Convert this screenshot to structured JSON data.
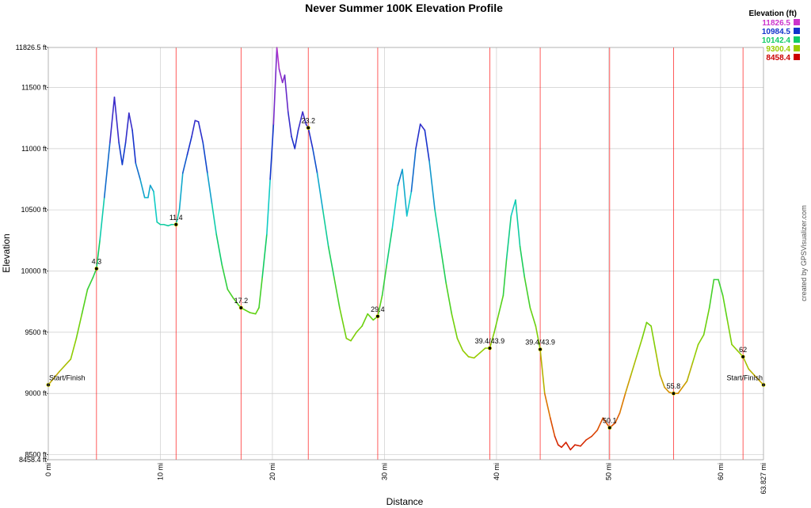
{
  "chart_data": {
    "type": "line",
    "title": "Never Summer 100K Elevation Profile",
    "xlabel": "Distance",
    "ylabel": "Elevation",
    "xlim": [
      0,
      63.827
    ],
    "ylim": [
      8458.4,
      11826.5
    ],
    "x_ticks": [
      "0 mi",
      "10 mi",
      "20 mi",
      "30 mi",
      "40 mi",
      "50 mi",
      "60 mi",
      "63.827 mi"
    ],
    "x_tick_values": [
      0,
      10,
      20,
      30,
      40,
      50,
      60,
      63.827
    ],
    "y_ticks": [
      "8458.4 ft",
      "8500 ft",
      "9000 ft",
      "9500 ft",
      "10000 ft",
      "10500 ft",
      "11000 ft",
      "11500 ft",
      "11826.5 ft"
    ],
    "y_tick_values": [
      8458.4,
      8500,
      9000,
      9500,
      10000,
      10500,
      11000,
      11500,
      11826.5
    ],
    "grid": true,
    "legend": {
      "title": "Elevation (ft)",
      "position": "top-right",
      "entries": [
        {
          "label": "11826.5",
          "color": "#cc33cc"
        },
        {
          "label": "10984.5",
          "color": "#1133cc"
        },
        {
          "label": "10142.4",
          "color": "#11cc66"
        },
        {
          "label": "9300.4",
          "color": "#99cc00"
        },
        {
          "label": "8458.4",
          "color": "#cc0000"
        }
      ]
    },
    "waypoints": [
      {
        "label": "Start/Finish",
        "x": 0,
        "y": 9070
      },
      {
        "label": "4.3",
        "x": 4.3,
        "y": 10020
      },
      {
        "label": "11.4",
        "x": 11.4,
        "y": 10380
      },
      {
        "label": "17.2",
        "x": 17.2,
        "y": 9700
      },
      {
        "label": "23.2",
        "x": 23.2,
        "y": 11170
      },
      {
        "label": "29.4",
        "x": 29.4,
        "y": 9630
      },
      {
        "label": "39.4/43.9",
        "x": 39.4,
        "y": 9370
      },
      {
        "label": "39.4/43.9",
        "x": 43.9,
        "y": 9360
      },
      {
        "label": "50.1",
        "x": 50.1,
        "y": 8720
      },
      {
        "label": "55.8",
        "x": 55.8,
        "y": 9000
      },
      {
        "label": "62",
        "x": 62,
        "y": 9300
      },
      {
        "label": "Start/Finish",
        "x": 63.827,
        "y": 9070
      }
    ],
    "series": [
      {
        "x": [
          0,
          1.0,
          2.0,
          2.5,
          3.0,
          3.5,
          4.0,
          4.3,
          4.6,
          5.0,
          5.5,
          5.9,
          6.3,
          6.6,
          6.9,
          7.2,
          7.5,
          7.8,
          8.2,
          8.6,
          8.9,
          9.1,
          9.4,
          9.7,
          10.0,
          10.3,
          10.7,
          11.0,
          11.4,
          11.7,
          12.0,
          12.4,
          12.8,
          13.1,
          13.4,
          13.8,
          14.2,
          14.6,
          15.0,
          15.5,
          16.0,
          16.5,
          17.0,
          17.2,
          17.6,
          18.0,
          18.5,
          18.8,
          19.1,
          19.5,
          19.8,
          20.1,
          20.4,
          20.6,
          20.9,
          21.1,
          21.4,
          21.7,
          22.0,
          22.3,
          22.7,
          23.0,
          23.2,
          23.6,
          24.0,
          24.5,
          25.0,
          25.5,
          26.0,
          26.6,
          27.0,
          27.5,
          28.0,
          28.5,
          29.0,
          29.4,
          29.8,
          30.2,
          30.7,
          31.2,
          31.6,
          32.0,
          32.4,
          32.8,
          33.2,
          33.6,
          34.0,
          34.5,
          35.0,
          35.5,
          36.0,
          36.5,
          37.0,
          37.5,
          38.0,
          38.5,
          39.0,
          39.4,
          39.8,
          40.2,
          40.6,
          40.9,
          41.3,
          41.7,
          42.1,
          42.5,
          43.0,
          43.5,
          43.9,
          44.3,
          44.8,
          45.2,
          45.5,
          45.8,
          46.2,
          46.6,
          47.0,
          47.5,
          48.0,
          48.5,
          49.0,
          49.5,
          50.1,
          50.6,
          51.0,
          51.5,
          52.0,
          52.5,
          53.0,
          53.4,
          53.8,
          54.2,
          54.6,
          55.0,
          55.4,
          55.8,
          56.2,
          56.6,
          57.0,
          57.5,
          58.0,
          58.5,
          59.0,
          59.4,
          59.8,
          60.2,
          60.6,
          61.0,
          61.5,
          62.0,
          62.5,
          63.0,
          63.827
        ],
        "y": [
          9070,
          9180,
          9280,
          9450,
          9650,
          9850,
          9950,
          10020,
          10250,
          10600,
          11050,
          11420,
          11050,
          10870,
          11050,
          11290,
          11150,
          10880,
          10750,
          10600,
          10600,
          10700,
          10650,
          10400,
          10380,
          10380,
          10370,
          10380,
          10380,
          10500,
          10800,
          10950,
          11100,
          11230,
          11220,
          11050,
          10800,
          10550,
          10300,
          10050,
          9850,
          9780,
          9720,
          9700,
          9680,
          9660,
          9650,
          9700,
          9950,
          10300,
          10750,
          11200,
          11826,
          11650,
          11540,
          11600,
          11300,
          11100,
          11000,
          11150,
          11300,
          11200,
          11170,
          11000,
          10800,
          10500,
          10200,
          9950,
          9700,
          9450,
          9430,
          9500,
          9550,
          9650,
          9600,
          9630,
          9800,
          10050,
          10350,
          10700,
          10830,
          10450,
          10650,
          11000,
          11200,
          11150,
          10900,
          10500,
          10200,
          9900,
          9650,
          9450,
          9350,
          9300,
          9290,
          9330,
          9370,
          9370,
          9500,
          9650,
          9800,
          10100,
          10450,
          10580,
          10200,
          9950,
          9700,
          9550,
          9360,
          9000,
          8800,
          8650,
          8580,
          8560,
          8600,
          8540,
          8580,
          8570,
          8620,
          8650,
          8700,
          8800,
          8720,
          8760,
          8840,
          9000,
          9150,
          9300,
          9450,
          9580,
          9550,
          9350,
          9150,
          9050,
          9010,
          9000,
          9000,
          9050,
          9100,
          9250,
          9400,
          9480,
          9700,
          9930,
          9930,
          9800,
          9600,
          9400,
          9350,
          9300,
          9200,
          9150,
          9070
        ]
      }
    ],
    "waypoint_lines_x": [
      4.3,
      11.4,
      17.2,
      23.2,
      29.4,
      39.4,
      43.9,
      50.1,
      55.8,
      62
    ],
    "credit": "created by GPSVisualizer.com",
    "line_color": "#ff0000",
    "grid_color": "#cccccc"
  }
}
